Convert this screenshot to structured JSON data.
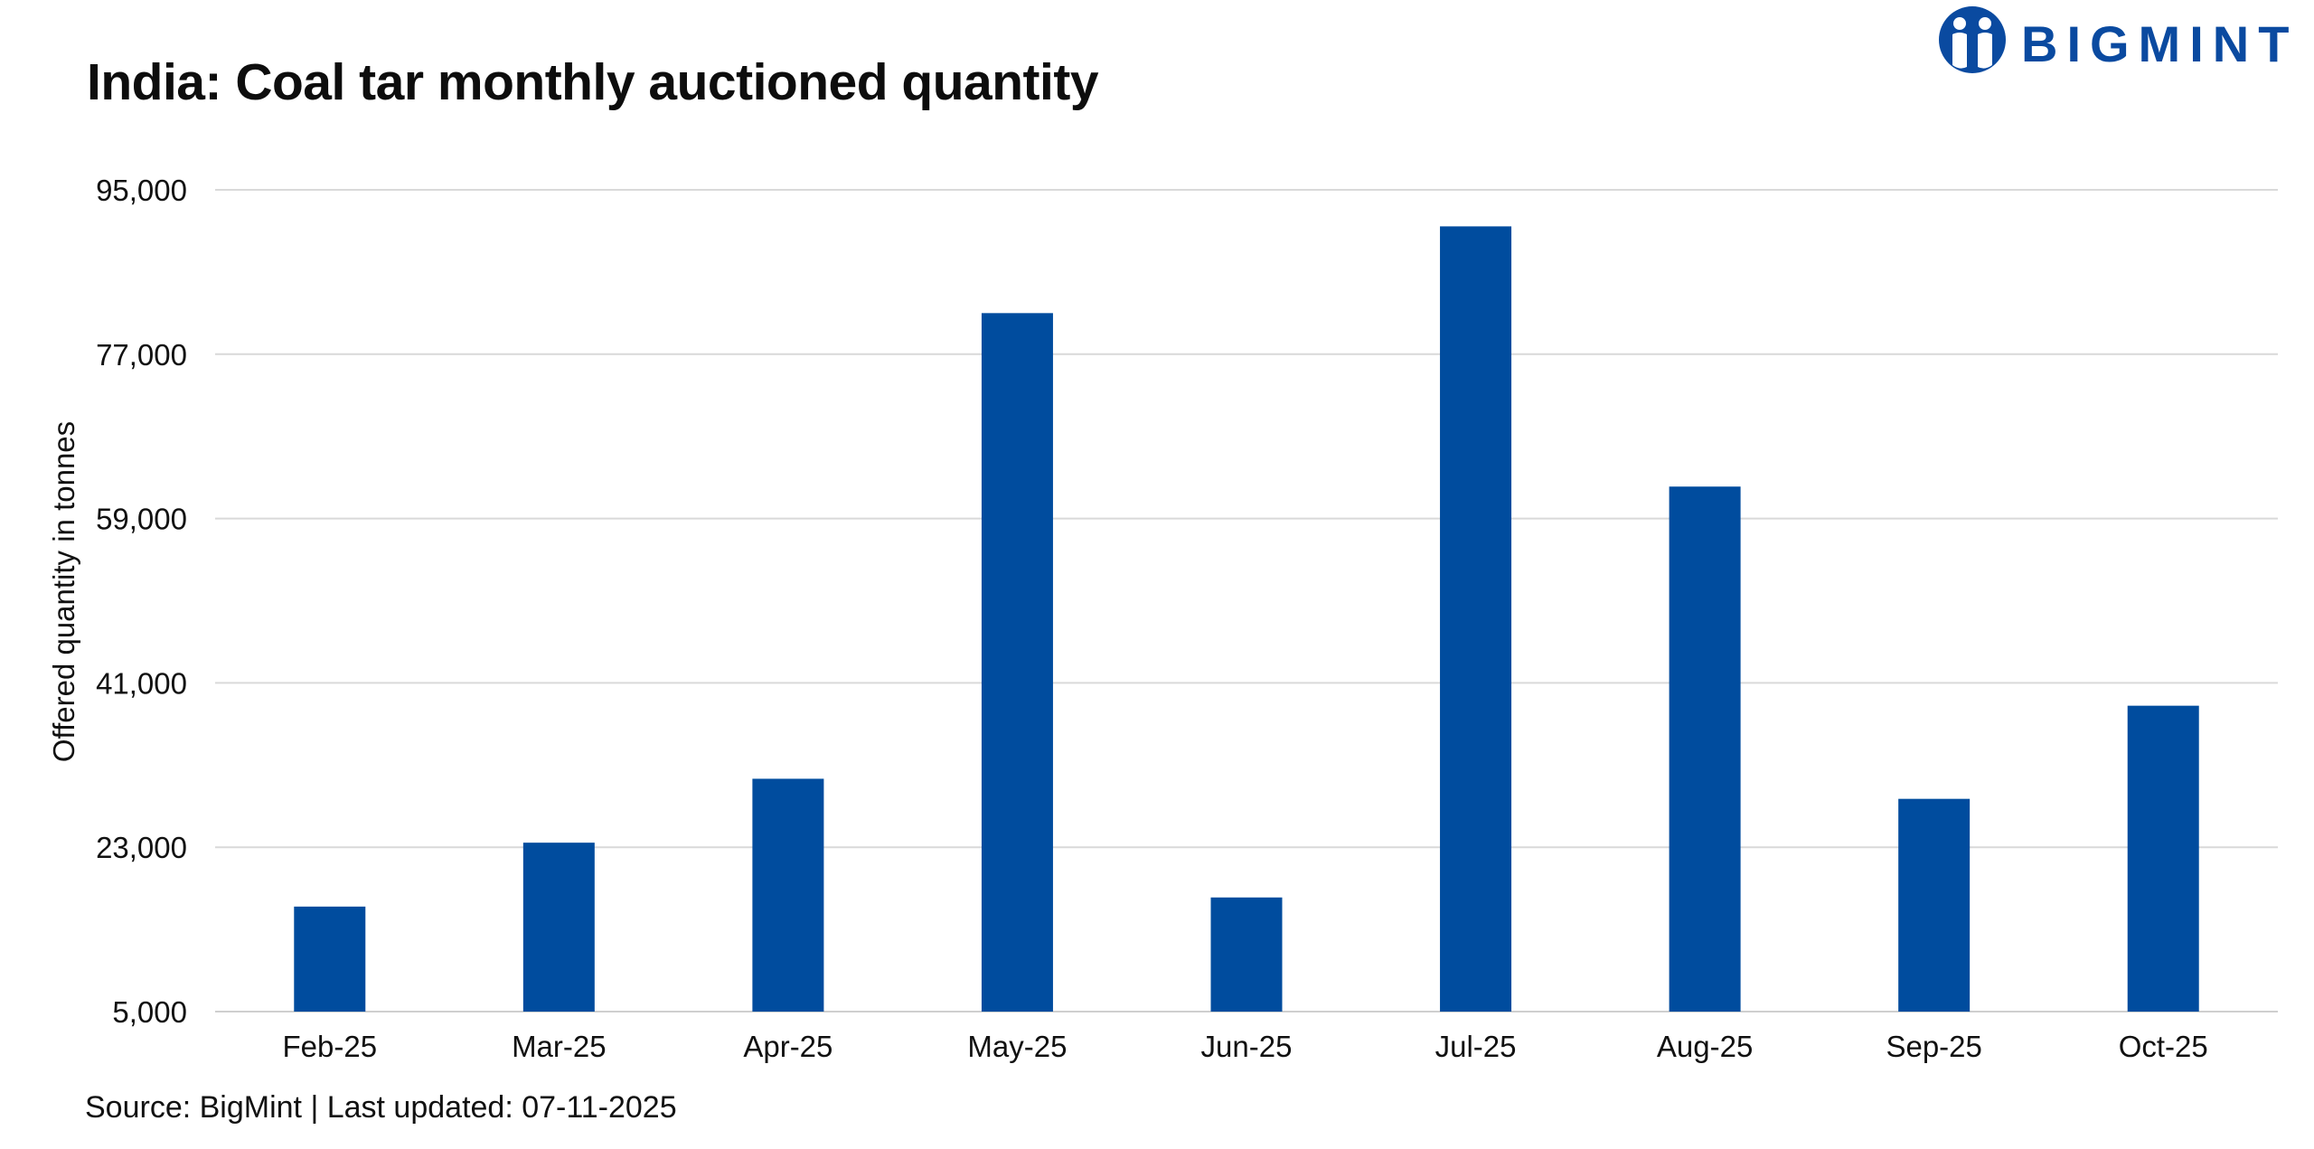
{
  "header": {
    "title": "India: Coal tar monthly auctioned quantity"
  },
  "logo": {
    "text": "BIGMINT",
    "color": "#0a4aa0",
    "icon": "bigmint-people-icon"
  },
  "footer": {
    "source": "Source: BigMint | Last updated: 07-11-2025"
  },
  "chart_data": {
    "type": "bar",
    "title": "India: Coal tar monthly auctioned quantity",
    "xlabel": "",
    "ylabel": "Offered quantity in tonnes",
    "categories": [
      "Feb-25",
      "Mar-25",
      "Apr-25",
      "May-25",
      "Jun-25",
      "Jul-25",
      "Aug-25",
      "Sep-25",
      "Oct-25"
    ],
    "values": [
      16500,
      23500,
      30500,
      81500,
      17500,
      91000,
      62500,
      28300,
      38500
    ],
    "ylim": [
      5000,
      95000
    ],
    "yticks": [
      5000,
      23000,
      41000,
      59000,
      77000,
      95000
    ],
    "ytick_labels": [
      "5,000",
      "23,000",
      "41,000",
      "59,000",
      "77,000",
      "95,000"
    ],
    "bar_color": "#004c9e",
    "grid": true,
    "legend": "none"
  }
}
